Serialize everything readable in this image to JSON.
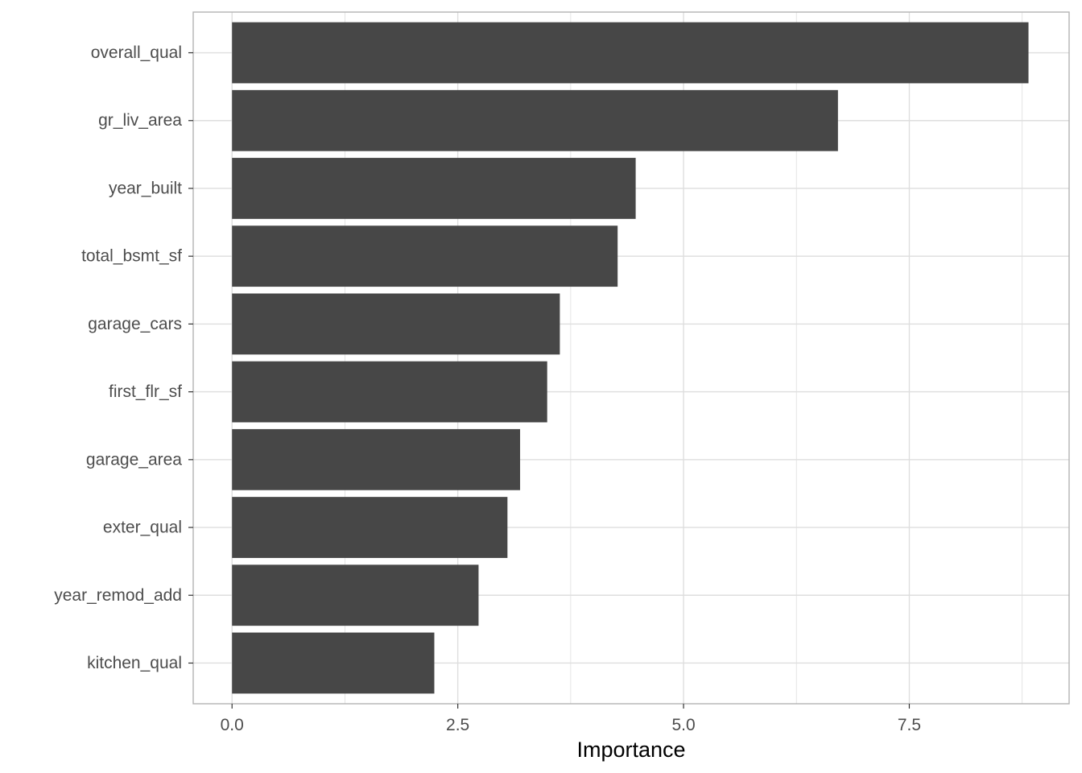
{
  "chart_data": {
    "type": "bar",
    "orientation": "horizontal",
    "xlabel": "Importance",
    "ylabel": "",
    "xlim": [
      -0.43,
      9.27
    ],
    "x_ticks": [
      0,
      2.5,
      5,
      7.5
    ],
    "x_tick_labels": [
      "0.0",
      "2.5",
      "5.0",
      "7.5"
    ],
    "grid": true,
    "legend": "none",
    "bar_color": "#474747",
    "grid_color": "#dedede",
    "panel_border_color": "#b3b3b3",
    "categories": [
      "overall_qual",
      "gr_liv_area",
      "year_built",
      "total_bsmt_sf",
      "garage_cars",
      "first_flr_sf",
      "garage_area",
      "exter_qual",
      "year_remod_add",
      "kitchen_qual"
    ],
    "values": [
      8.82,
      6.71,
      4.47,
      4.27,
      3.63,
      3.49,
      3.19,
      3.05,
      2.73,
      2.24
    ]
  }
}
